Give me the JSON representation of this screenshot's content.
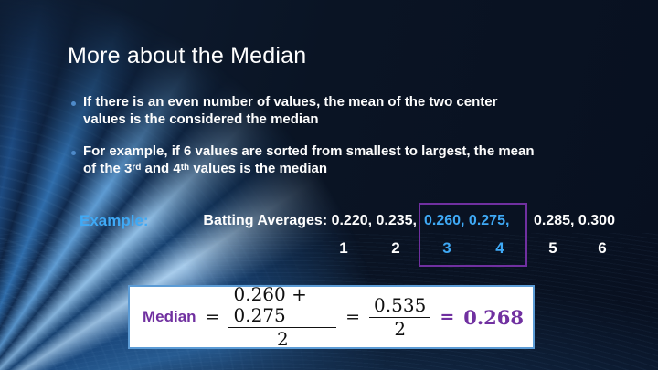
{
  "colors": {
    "background": "#0A1424",
    "accent_blue": "#3FA9F5",
    "purple": "#7030A0",
    "panel_border_blue": "#5B9BD5",
    "bullet_dot_blue": "#4E8AC9"
  },
  "title": "More about the Median",
  "bullets": {
    "b1_line1": "If there is an even number of values, the mean of the two center",
    "b1_line2": "values is the considered the median",
    "b2_line1": "For example, if 6 values are sorted from smallest to largest, the mean",
    "b2_line2_part1": "of the 3",
    "b2_line2_sup1": "rd",
    "b2_line2_part2": " and 4",
    "b2_line2_sup2": "th",
    "b2_line2_part3": " values is the median"
  },
  "example": {
    "label": "Example:",
    "prefix": "Batting Averages: 0.220, 0.235,",
    "highlight": "0.260, 0.275,",
    "suffix": "0.285, 0.300",
    "positions": [
      "1",
      "2",
      "3",
      "4",
      "5",
      "6"
    ]
  },
  "formula": {
    "label": "Median",
    "eq1": "=",
    "frac1_num": "0.260 + 0.275",
    "frac1_den": "2",
    "eq2": "=",
    "frac2_num": "0.535",
    "frac2_den": "2",
    "eq3": "=",
    "result": "0.268"
  }
}
